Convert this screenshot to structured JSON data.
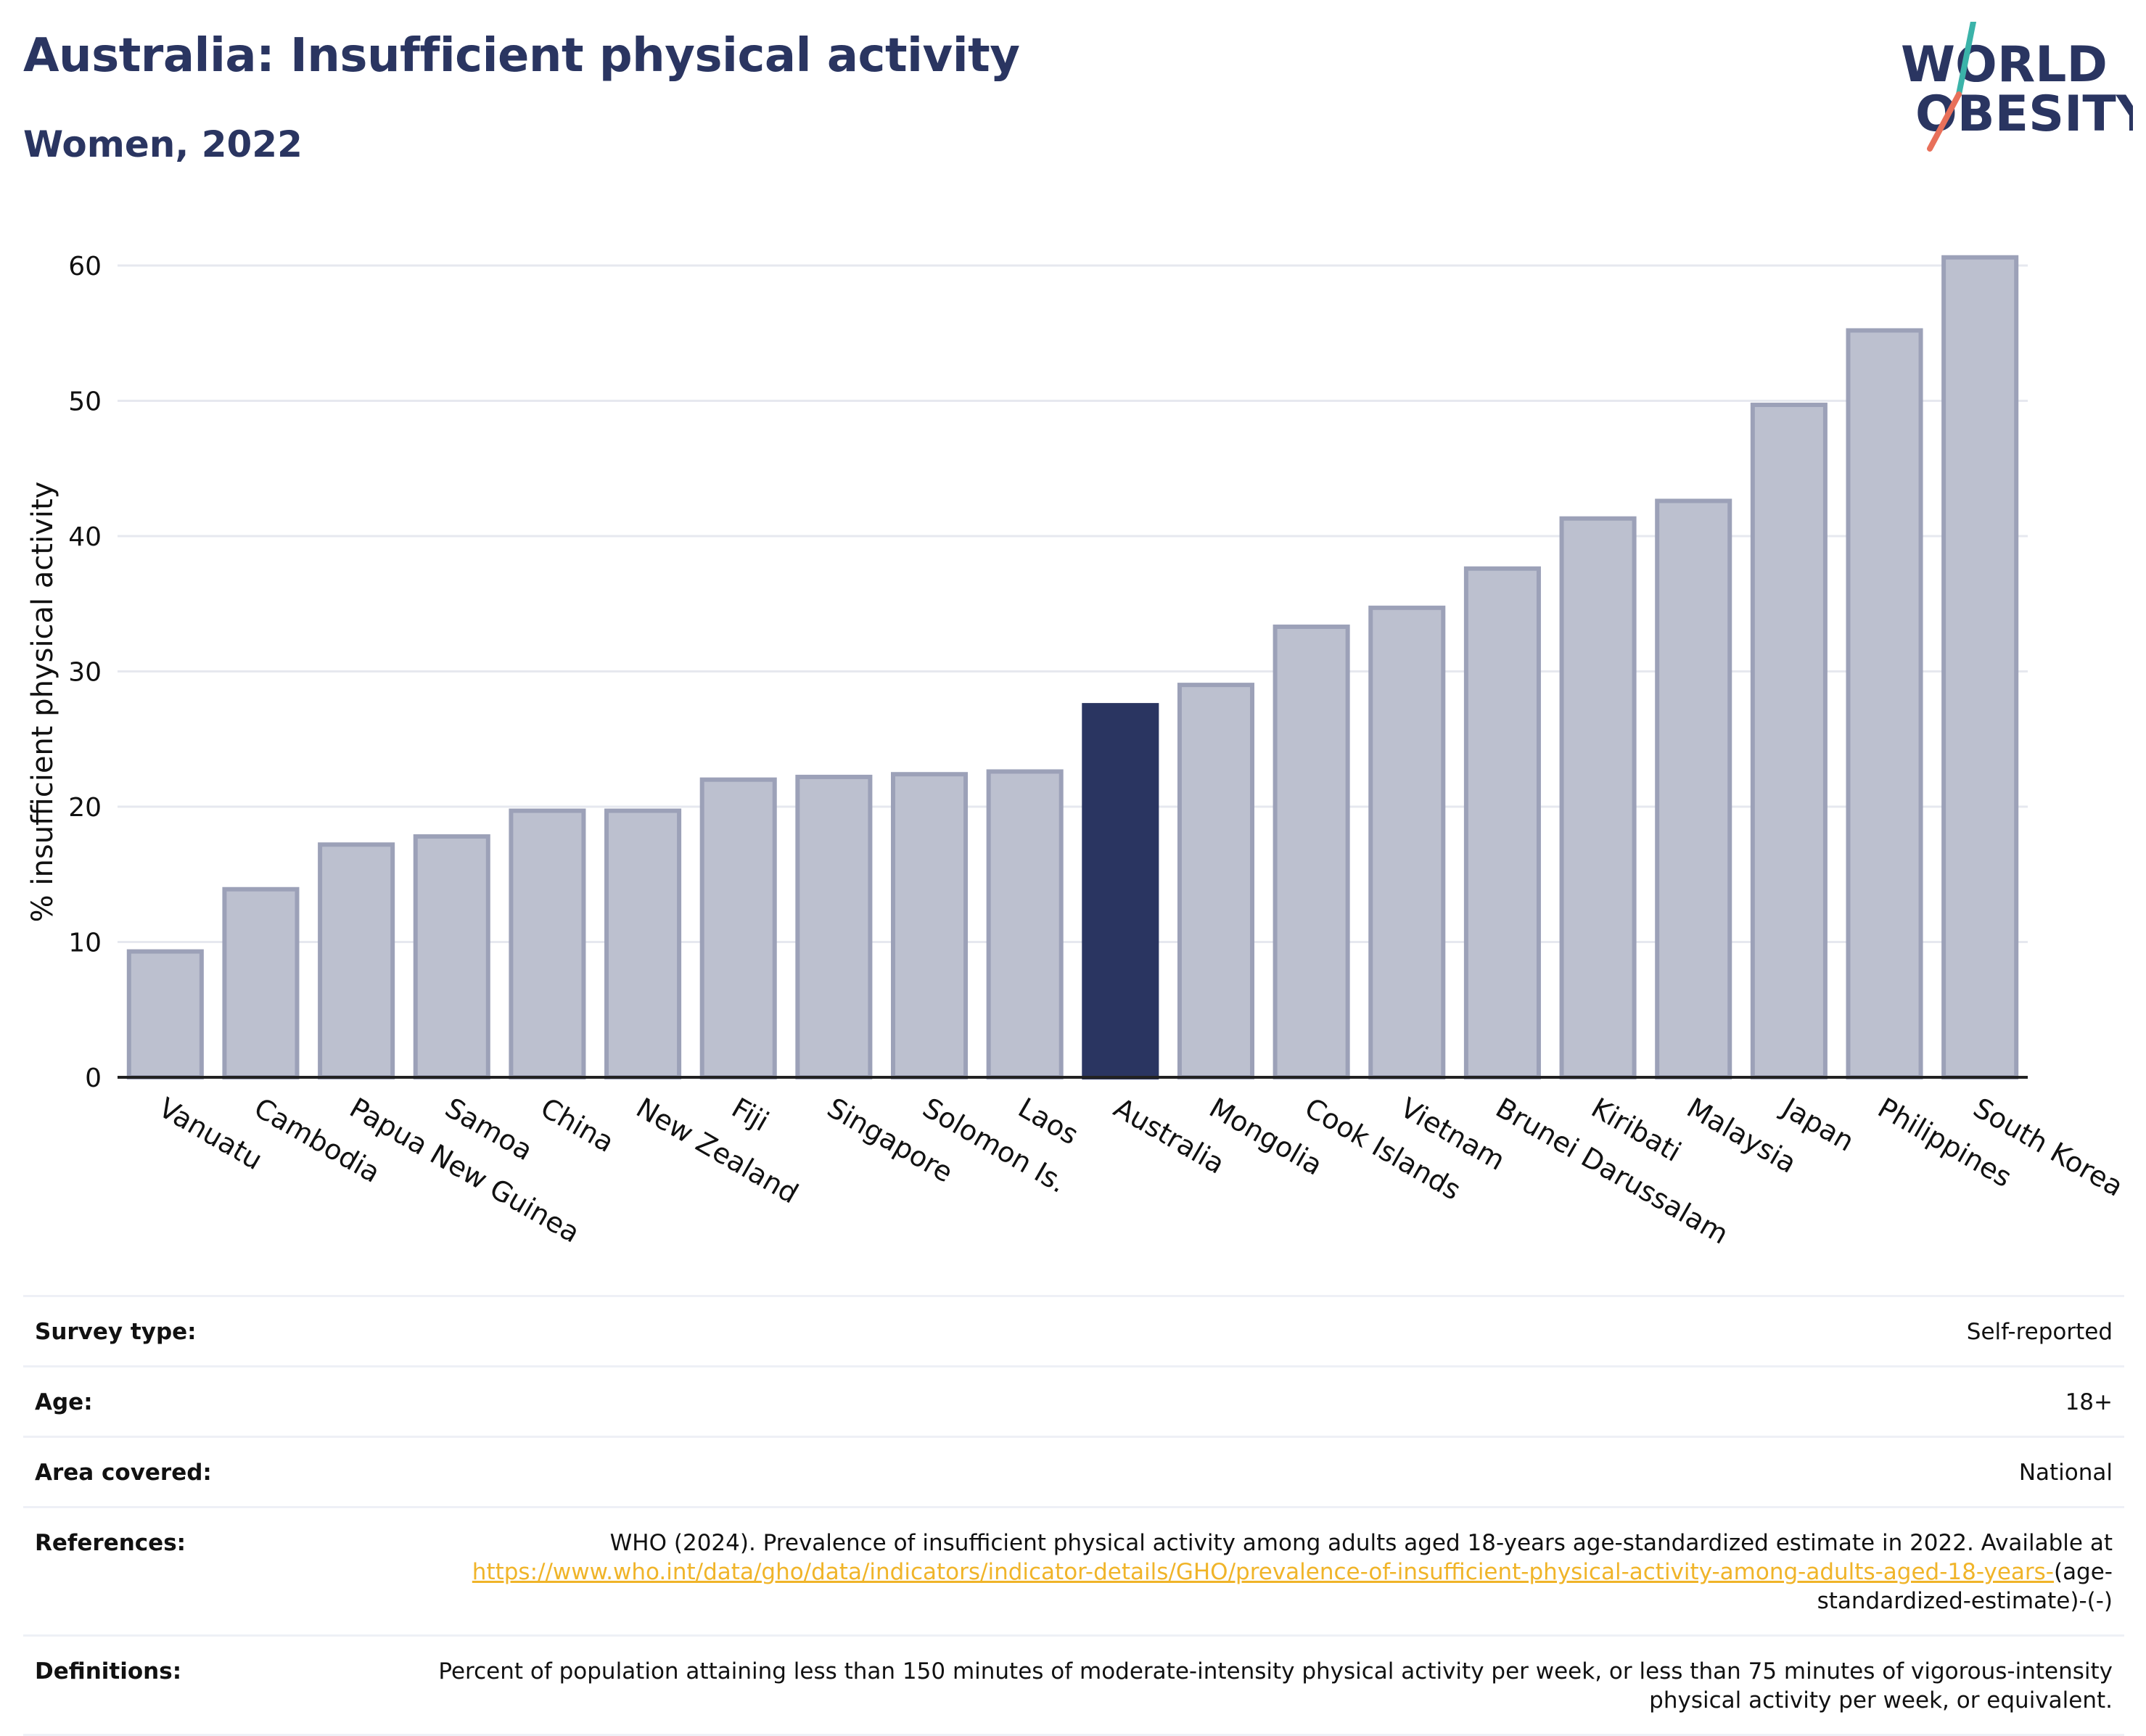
{
  "header": {
    "title": "Australia: Insufficient physical activity",
    "subtitle": "Women, 2022"
  },
  "logo": {
    "line1": "WORLD",
    "line2": "OBESITY",
    "text_color": "#2a3561",
    "slash_top_color": "#3bb3a9",
    "slash_bottom_color": "#e8705a"
  },
  "colors": {
    "bar": "#bcc0cf",
    "bar_stroke": "#9ca1b8",
    "highlight": "#2a3561",
    "grid": "#e6e8ef",
    "axis": "#222222"
  },
  "chart_data": {
    "type": "bar",
    "title": "Australia: Insufficient physical activity",
    "subtitle": "Women, 2022",
    "xlabel": "",
    "ylabel": "% insufficient physical activity",
    "ylim": [
      0,
      63
    ],
    "yticks": [
      0,
      10,
      20,
      30,
      40,
      50,
      60
    ],
    "grid": true,
    "highlight": "Australia",
    "categories": [
      "Vanuatu",
      "Cambodia",
      "Papua New Guinea",
      "Samoa",
      "China",
      "New Zealand",
      "Fiji",
      "Singapore",
      "Solomon Is.",
      "Laos",
      "Australia",
      "Mongolia",
      "Cook Islands",
      "Vietnam",
      "Brunei Darussalam",
      "Kiribati",
      "Malaysia",
      "Japan",
      "Philippines",
      "South Korea"
    ],
    "values": [
      9.3,
      13.9,
      17.2,
      17.8,
      19.7,
      19.7,
      22.0,
      22.2,
      22.4,
      22.6,
      27.5,
      29.0,
      33.3,
      34.7,
      37.6,
      41.3,
      42.6,
      49.7,
      55.2,
      60.6
    ]
  },
  "info": {
    "rows": [
      {
        "label": "Survey type:",
        "value": "Self-reported"
      },
      {
        "label": "Age:",
        "value": "18+"
      },
      {
        "label": "Area covered:",
        "value": "National"
      }
    ],
    "references": {
      "label": "References:",
      "text": "WHO (2024). Prevalence of insufficient physical activity among adults aged 18-years age-standardized estimate in 2022. Available at",
      "link": "https://www.who.int/data/gho/data/indicators/indicator-details/GHO/prevalence-of-insufficient-physical-activity-among-adults-aged-18-years-",
      "suffix": "(age-standardized-estimate)-(-)"
    },
    "definitions": {
      "label": "Definitions:",
      "value": "Percent of population attaining less than 150 minutes of moderate-intensity physical activity per week, or less than 75 minutes of vigorous-intensity physical activity per week, or equivalent."
    }
  }
}
